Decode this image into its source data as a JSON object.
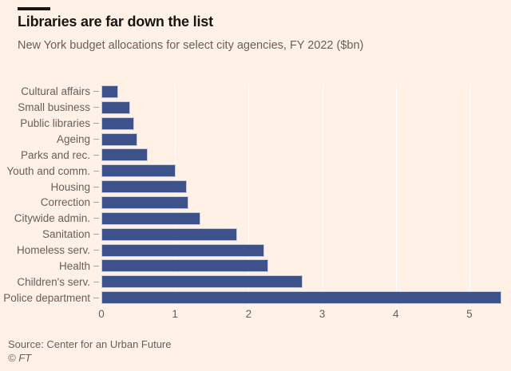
{
  "header": {
    "title": "Libraries are far down the list",
    "subtitle": "New York budget allocations for select city agencies, FY 2022 ($bn)"
  },
  "footer": {
    "source": "Source: Center for an Urban Future",
    "copyright": "© FT"
  },
  "colors": {
    "background": "#fff1e5",
    "bar": "#3d528b",
    "title_text": "#181514",
    "muted_text": "#66605c",
    "accent_bar": "#1a1817",
    "gridline": "rgba(255,255,255,0.85)"
  },
  "chart_data": {
    "type": "bar",
    "orientation": "horizontal",
    "title": "Libraries are far down the list",
    "subtitle": "New York budget allocations for select city agencies, FY 2022 ($bn)",
    "unit": "$bn",
    "categories": [
      "Cultural affairs",
      "Small business",
      "Public libraries",
      "Ageing",
      "Parks and rec.",
      "Youth and comm.",
      "Housing",
      "Correction",
      "Citywide admin.",
      "Sanitation",
      "Homeless serv.",
      "Health",
      "Children's serv.",
      "Police department"
    ],
    "values": [
      0.23,
      0.39,
      0.44,
      0.49,
      0.63,
      1.01,
      1.16,
      1.18,
      1.35,
      1.84,
      2.21,
      2.27,
      2.73,
      5.44
    ],
    "xlabel": "",
    "ylabel": "",
    "xticks": [
      0,
      1,
      2,
      3,
      4,
      5
    ],
    "xlim": [
      0,
      5.5
    ],
    "grid": "vertical",
    "legend": "none"
  }
}
